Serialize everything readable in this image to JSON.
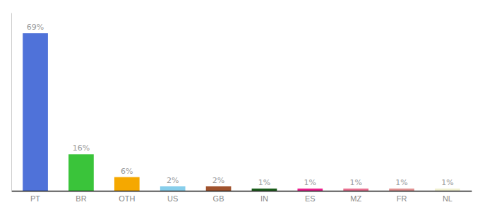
{
  "chart_data": {
    "type": "bar",
    "categories": [
      "PT",
      "BR",
      "OTH",
      "US",
      "GB",
      "IN",
      "ES",
      "MZ",
      "FR",
      "NL"
    ],
    "values": [
      69,
      16,
      6,
      2,
      2,
      1,
      1,
      1,
      1,
      1
    ],
    "value_labels": [
      "69%",
      "16%",
      "6%",
      "2%",
      "2%",
      "1%",
      "1%",
      "1%",
      "1%",
      "1%"
    ],
    "colors": [
      "#4f72d9",
      "#3ac43a",
      "#f5a800",
      "#87ceeb",
      "#a0522d",
      "#1a5c1a",
      "#e91e8c",
      "#e87090",
      "#e09090",
      "#f0f0d0"
    ],
    "ylim": [
      0,
      78
    ],
    "data_labels": true,
    "tick_labels": "x"
  }
}
